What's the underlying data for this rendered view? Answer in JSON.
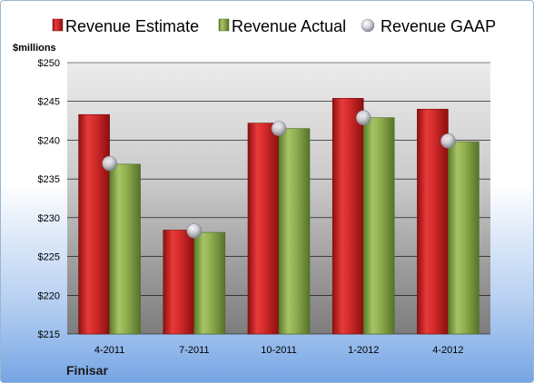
{
  "chart_data": {
    "type": "bar",
    "title": "",
    "ylabel": "$millions",
    "company": "Finisar",
    "categories": [
      "4-2011",
      "7-2011",
      "10-2011",
      "1-2012",
      "4-2012"
    ],
    "ylim": [
      215,
      250
    ],
    "yticks": [
      215,
      220,
      225,
      230,
      235,
      240,
      245,
      250
    ],
    "ytick_labels": [
      "$215",
      "$220",
      "$225",
      "$230",
      "$235",
      "$240",
      "$245",
      "$250"
    ],
    "grid": true,
    "legend_position": "top",
    "series": [
      {
        "name": "Revenue Estimate",
        "type": "bar",
        "color": "#d42a2a",
        "values": [
          243.3,
          228.4,
          242.2,
          245.4,
          244.0
        ]
      },
      {
        "name": "Revenue Actual",
        "type": "bar",
        "color": "#8fae4e",
        "values": [
          236.9,
          228.1,
          241.5,
          242.9,
          239.8
        ]
      },
      {
        "name": "Revenue GAAP",
        "type": "marker",
        "color": "#c8ccd6",
        "values": [
          237.0,
          228.3,
          241.5,
          242.9,
          239.9
        ]
      }
    ]
  }
}
